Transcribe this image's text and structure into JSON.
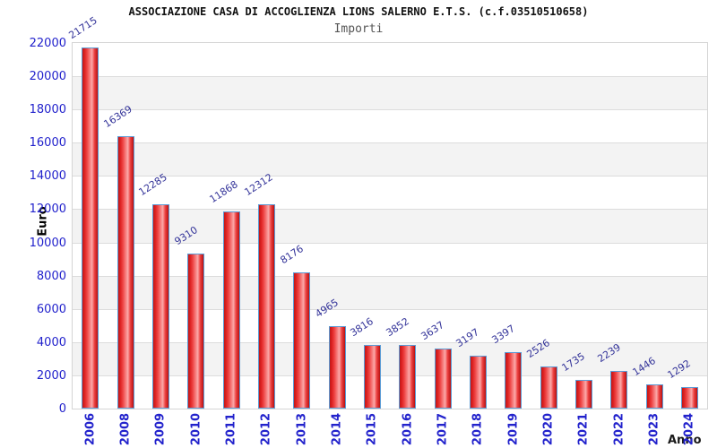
{
  "chart_data": {
    "type": "bar",
    "title": "ASSOCIAZIONE CASA DI ACCOGLIENZA LIONS SALERNO E.T.S. (c.f.03510510658)",
    "subtitle": "Importi",
    "xlabel": "Anno",
    "ylabel": "Euro",
    "categories": [
      "2006",
      "2008",
      "2009",
      "2010",
      "2011",
      "2012",
      "2013",
      "2014",
      "2015",
      "2016",
      "2017",
      "2018",
      "2019",
      "2020",
      "2021",
      "2022",
      "2023",
      "2024"
    ],
    "values": [
      21715,
      16369,
      12285,
      9310,
      11868,
      12312,
      8176,
      4965,
      3816,
      3852,
      3637,
      3197,
      3397,
      2526,
      1735,
      2239,
      1446,
      1292
    ],
    "ylim": [
      0,
      22000
    ],
    "ytick_step": 2000,
    "yticks": [
      0,
      2000,
      4000,
      6000,
      8000,
      10000,
      12000,
      14000,
      16000,
      18000,
      20000,
      22000
    ],
    "grid": "horizontal-bands-alternating",
    "legend": "none",
    "value_labels_shown": true,
    "x_tick_rotation_deg": -90,
    "value_label_rotation_deg": -33,
    "colors": {
      "bar_fill_main": "#e02222",
      "bar_fill_highlight": "#fbaaaa",
      "bar_border": "#5b9bd5",
      "axis_tick_label": "#2222cc",
      "value_label": "#333399",
      "axis_title": "#000000",
      "title": "#111111",
      "subtitle": "#555555",
      "band_gray": "#f3f3f3",
      "band_white": "#ffffff",
      "grid_line": "#dcdcdc",
      "plot_border": "#d5d5d5",
      "background": "#ffffff"
    }
  }
}
